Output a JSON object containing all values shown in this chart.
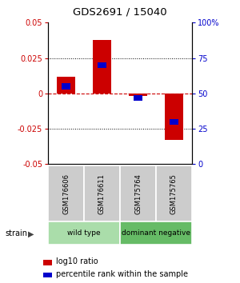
{
  "title": "GDS2691 / 15040",
  "samples": [
    "GSM176606",
    "GSM176611",
    "GSM175764",
    "GSM175765"
  ],
  "log10_ratio": [
    0.012,
    0.038,
    -0.002,
    -0.033
  ],
  "percentile_rank": [
    55,
    70,
    47,
    30
  ],
  "groups": [
    {
      "label": "wild type",
      "samples": [
        0,
        1
      ],
      "color": "#aaddaa"
    },
    {
      "label": "dominant negative",
      "samples": [
        2,
        3
      ],
      "color": "#66bb66"
    }
  ],
  "ylim": [
    -0.05,
    0.05
  ],
  "yticks_left": [
    -0.05,
    -0.025,
    0,
    0.025,
    0.05
  ],
  "yticks_right_vals": [
    0,
    25,
    50,
    75,
    100
  ],
  "yticks_right_labels": [
    "0",
    "25",
    "50",
    "75",
    "100%"
  ],
  "bar_width": 0.5,
  "red_color": "#cc0000",
  "blue_color": "#0000cc",
  "bg_color": "#ffffff"
}
